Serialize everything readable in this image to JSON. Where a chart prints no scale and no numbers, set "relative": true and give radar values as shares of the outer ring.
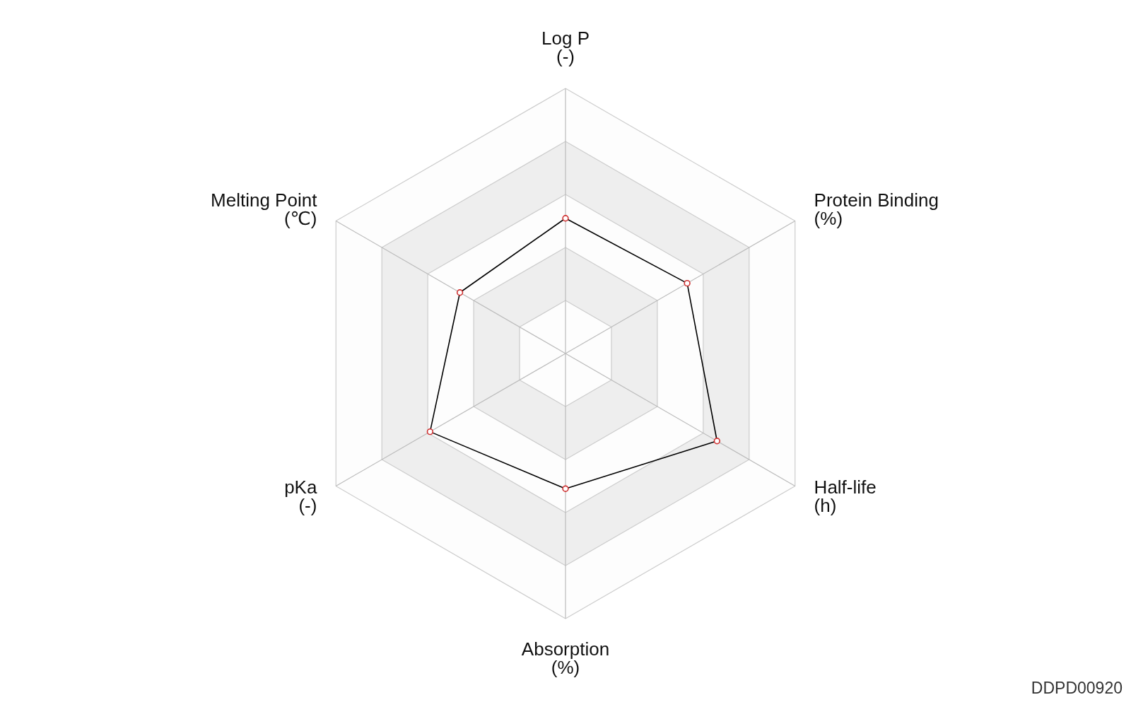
{
  "chart_data": {
    "type": "radar",
    "categories": [
      "Log P\n(-)",
      "Protein Binding\n(%)",
      "Half-life\n(h)",
      "Absorption\n(%)",
      "pKa\n(-)",
      "Melting Point\n(℃)"
    ],
    "relative": true,
    "series": [
      {
        "color": "#000000",
        "values": [
          0.51,
          0.53,
          0.66,
          0.51,
          0.59,
          0.46
        ]
      }
    ],
    "grid": true,
    "marker": "circle",
    "annotations": [
      "DDPD00920"
    ]
  }
}
